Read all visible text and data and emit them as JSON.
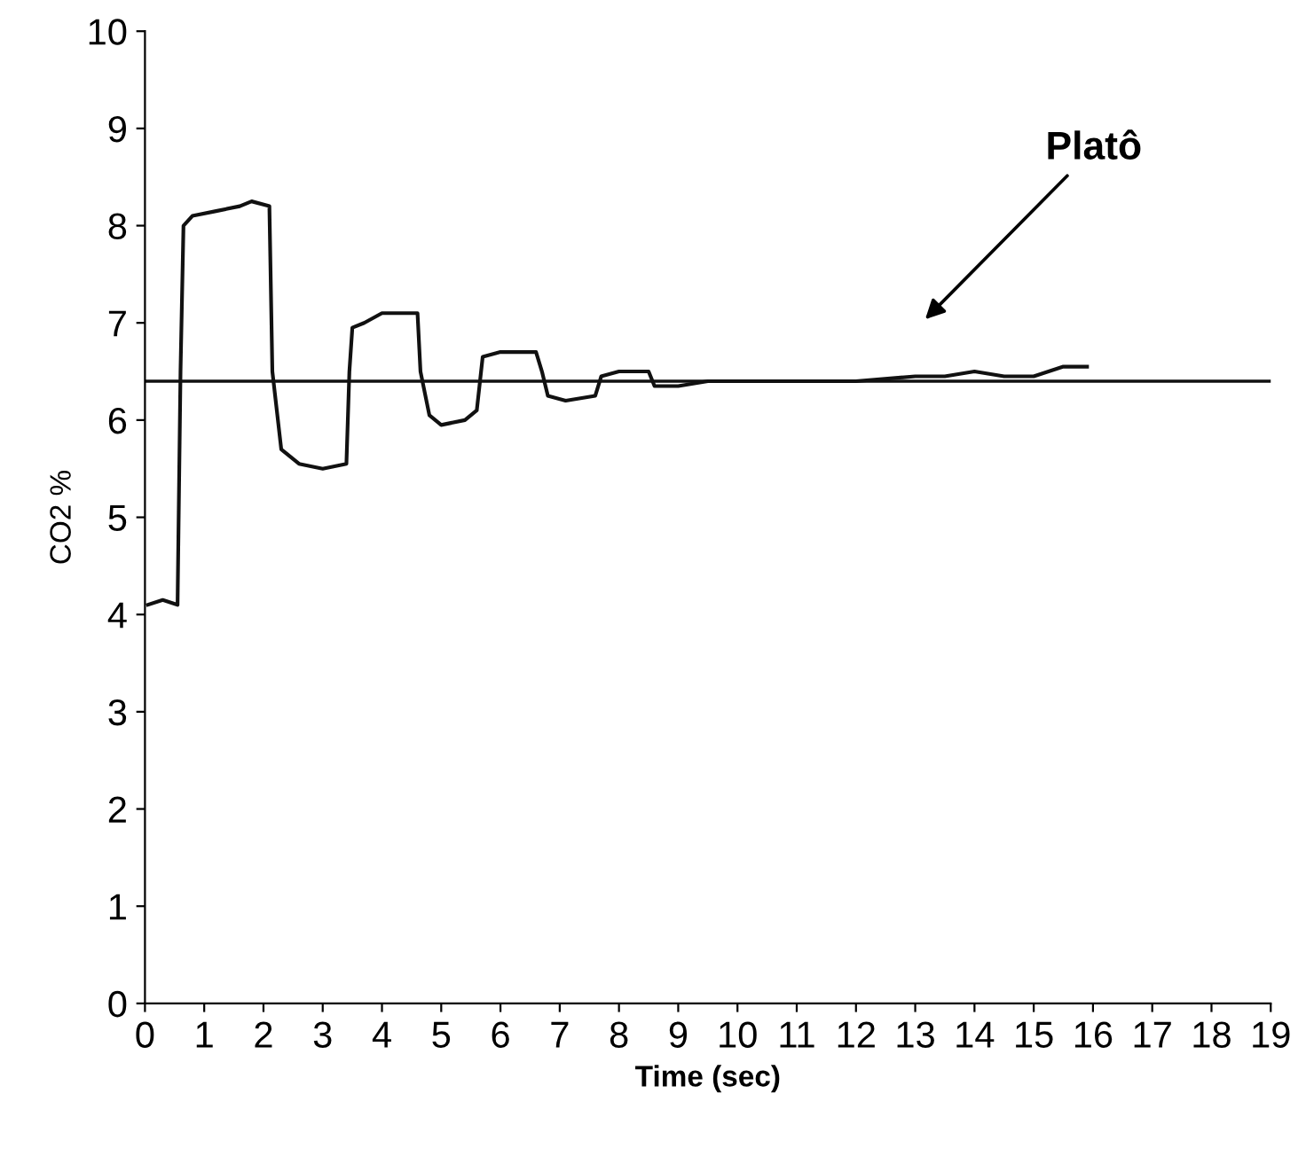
{
  "chart_data": {
    "type": "line",
    "xlabel": "Time (sec)",
    "ylabel": "CO2 %",
    "xlim": [
      0,
      19
    ],
    "ylim": [
      0,
      10
    ],
    "xticks": [
      0,
      1,
      2,
      3,
      4,
      5,
      6,
      7,
      8,
      9,
      10,
      11,
      12,
      13,
      14,
      15,
      16,
      17,
      18,
      19
    ],
    "yticks": [
      0,
      1,
      2,
      3,
      4,
      5,
      6,
      7,
      8,
      9,
      10
    ],
    "series": [
      {
        "color": "#111111",
        "x": [
          0.05,
          0.3,
          0.55,
          0.6,
          0.65,
          0.8,
          1.2,
          1.6,
          1.8,
          2.1,
          2.15,
          2.3,
          2.6,
          3.0,
          3.4,
          3.45,
          3.5,
          3.7,
          4.0,
          4.6,
          4.65,
          4.8,
          5.0,
          5.4,
          5.6,
          5.7,
          6.0,
          6.6,
          6.7,
          6.8,
          7.1,
          7.6,
          7.7,
          8.0,
          8.5,
          8.6,
          9.0,
          9.5,
          10,
          11,
          12,
          13,
          13.5,
          14,
          14.5,
          15,
          15.5,
          15.9
        ],
        "values": [
          4.1,
          4.15,
          4.1,
          6.5,
          8.0,
          8.1,
          8.15,
          8.2,
          8.25,
          8.2,
          6.5,
          5.7,
          5.55,
          5.5,
          5.55,
          6.5,
          6.95,
          7.0,
          7.1,
          7.1,
          6.5,
          6.05,
          5.95,
          6.0,
          6.1,
          6.65,
          6.7,
          6.7,
          6.5,
          6.25,
          6.2,
          6.25,
          6.45,
          6.5,
          6.5,
          6.35,
          6.35,
          6.4,
          6.4,
          6.4,
          6.4,
          6.45,
          6.45,
          6.5,
          6.45,
          6.45,
          6.55,
          6.55
        ]
      }
    ],
    "ref_lines": [
      {
        "axis": "y",
        "value": 6.4,
        "color": "#111111"
      }
    ],
    "annotations": [
      "Platô"
    ],
    "grid": false,
    "legend": false
  }
}
